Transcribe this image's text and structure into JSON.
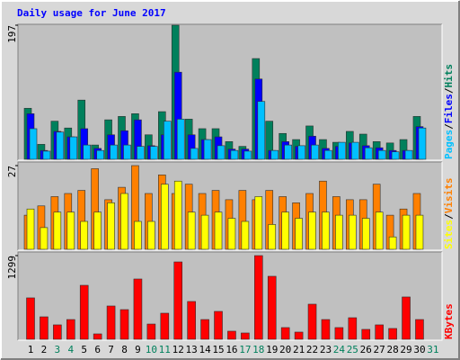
{
  "chart_data": {
    "type": "bar",
    "title": "Daily usage for June 2017",
    "categories": [
      "1",
      "2",
      "3",
      "4",
      "5",
      "6",
      "7",
      "8",
      "9",
      "10",
      "11",
      "12",
      "13",
      "14",
      "15",
      "16",
      "17",
      "18",
      "19",
      "20",
      "21",
      "22",
      "23",
      "24",
      "25",
      "26",
      "27",
      "28",
      "29",
      "30",
      "31"
    ],
    "category_colors": [
      "#000000",
      "#000000",
      "#00805c",
      "#00805c",
      "#000000",
      "#000000",
      "#000000",
      "#000000",
      "#000000",
      "#00805c",
      "#00805c",
      "#000000",
      "#000000",
      "#000000",
      "#000000",
      "#000000",
      "#00805c",
      "#00805c",
      "#000000",
      "#000000",
      "#000000",
      "#000000",
      "#000000",
      "#00805c",
      "#00805c",
      "#000000",
      "#000000",
      "#000000",
      "#000000",
      "#000000",
      "#00805c"
    ],
    "legend_separator": "/",
    "panels": [
      {
        "ylim": [
          0,
          197
        ],
        "yticks": [
          197
        ],
        "series": [
          {
            "name": "Hits",
            "color": "#00805c",
            "values": [
              75,
              22,
              56,
              46,
              87,
              21,
              58,
              63,
              67,
              36,
              70,
              197,
              59,
              45,
              45,
              26,
              19,
              148,
              56,
              38,
              29,
              49,
              29,
              25,
              41,
              37,
              26,
              24,
              29,
              63,
              null
            ]
          },
          {
            "name": "Files",
            "color": "#0000ff",
            "values": [
              67,
              13,
              41,
              33,
              45,
              16,
              36,
              42,
              58,
              20,
              36,
              128,
              36,
              29,
              33,
              15,
              15,
              118,
              13,
              26,
              19,
              34,
              16,
              19,
              24,
              20,
              17,
              13,
              13,
              48,
              null
            ]
          },
          {
            "name": "Pages",
            "color": "#00c0ff",
            "values": [
              45,
              12,
              40,
              33,
              21,
              13,
              21,
              21,
              19,
              19,
              56,
              59,
              16,
              29,
              20,
              13,
              12,
              85,
              13,
              21,
              20,
              21,
              13,
              25,
              25,
              17,
              13,
              11,
              13,
              46,
              null
            ]
          }
        ]
      },
      {
        "ylim": [
          0,
          27
        ],
        "yticks": [
          27
        ],
        "series": [
          {
            "name": "Visits",
            "color": "#ff8000",
            "values": [
              11,
              14,
              17,
              18,
              19,
              26,
              16,
              20,
              27,
              18,
              24,
              18,
              21,
              18,
              19,
              16,
              19,
              16,
              19,
              17,
              15,
              18,
              22,
              17,
              16,
              16,
              21,
              11,
              13,
              18,
              null
            ]
          },
          {
            "name": "Sites",
            "color": "#ffff00",
            "values": [
              13,
              7,
              12,
              12,
              9,
              12,
              15,
              18,
              9,
              9,
              21,
              22,
              12,
              11,
              12,
              10,
              9,
              17,
              8,
              12,
              10,
              12,
              12,
              11,
              11,
              10,
              12,
              4,
              11,
              11,
              null
            ]
          }
        ]
      },
      {
        "ylim": [
          0,
          1299
        ],
        "yticks": [
          1299
        ],
        "series": [
          {
            "name": "KBytes",
            "color": "#ff0000",
            "values": [
              643,
              349,
              224,
              307,
              838,
              84,
              517,
              461,
              936,
              237,
              405,
              1201,
              587,
              307,
              433,
              126,
              98,
              1299,
              978,
              182,
              112,
              545,
              307,
              182,
              335,
              154,
              224,
              168,
              657,
              307,
              null
            ]
          }
        ]
      }
    ]
  }
}
